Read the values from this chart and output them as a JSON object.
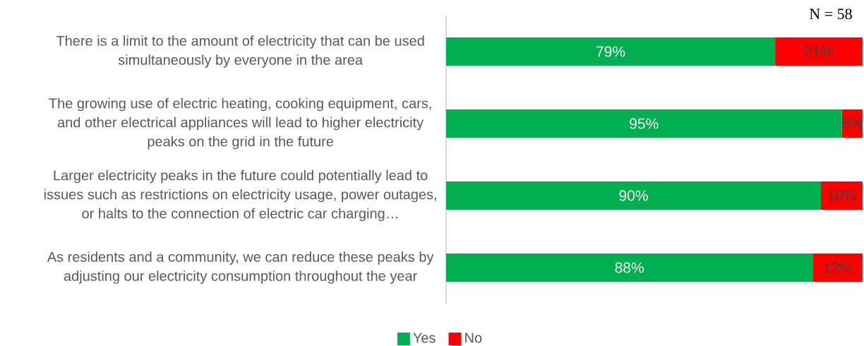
{
  "chart_data": {
    "type": "bar",
    "orientation": "horizontal",
    "stacked": true,
    "categories": [
      "There is a limit to the amount of electricity that can be used simultaneously by everyone in the area",
      "The growing use of electric heating, cooking equipment, cars, and other electrical appliances will lead to higher electricity peaks on the grid in the future",
      "Larger electricity peaks in the future could potentially lead to issues such as restrictions on electricity usage, power outages, or halts to the connection of electric car charging…",
      "As residents and a community, we can reduce these peaks by adjusting our electricity consumption throughout the year"
    ],
    "series": [
      {
        "name": "Yes",
        "color": "#00b050",
        "values": [
          79,
          95,
          90,
          88
        ],
        "value_labels": [
          "79%",
          "95%",
          "90%",
          "88%"
        ]
      },
      {
        "name": "No",
        "color": "#ff0000",
        "values": [
          21,
          5,
          10,
          12
        ],
        "value_labels": [
          "21%",
          "5%",
          "10%",
          "12%"
        ]
      }
    ],
    "xlim": [
      0,
      100
    ],
    "tick_labels": "y",
    "legend": "bottom",
    "annotations": [
      "N = 58"
    ]
  }
}
